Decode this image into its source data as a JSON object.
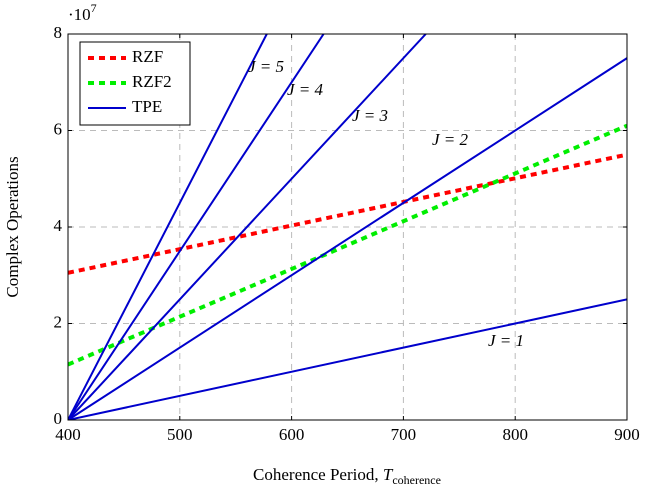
{
  "chart_data": {
    "type": "line",
    "x_label": "Coherence Period, ",
    "x_label_symbol": "T",
    "x_label_subscript": "coherence",
    "y_label": "Complex Operations",
    "y_scale_base": "·10",
    "y_scale_exponent": "7",
    "xlim": [
      400,
      900
    ],
    "ylim": [
      0,
      8
    ],
    "xticks": [
      400,
      500,
      600,
      700,
      800,
      900
    ],
    "yticks": [
      0,
      2,
      4,
      6,
      8
    ],
    "grid": true,
    "legend": "upper left",
    "series": [
      {
        "name": "RZF",
        "color": "#ff0000",
        "dashed": true,
        "x": [
          400,
          900
        ],
        "values": [
          3.05,
          5.5
        ]
      },
      {
        "name": "RZF2",
        "color": "#00ee00",
        "dashed": true,
        "x": [
          400,
          900
        ],
        "values": [
          1.15,
          6.1
        ]
      },
      {
        "name": "TPE",
        "color": "#0000cc",
        "dashed": false,
        "lines": [
          {
            "label": "J = 1",
            "x": [
              400,
              900
            ],
            "values": [
              0,
              2.5
            ]
          },
          {
            "label": "J = 2",
            "x": [
              400,
              900
            ],
            "values": [
              0,
              7.5
            ]
          },
          {
            "label": "J = 3",
            "x": [
              400,
              720
            ],
            "values": [
              0,
              8
            ]
          },
          {
            "label": "J = 4",
            "x": [
              400,
              628.6
            ],
            "values": [
              0,
              8
            ]
          },
          {
            "label": "J = 5",
            "x": [
              400,
              577.8
            ],
            "values": [
              0,
              8
            ]
          }
        ]
      }
    ]
  }
}
